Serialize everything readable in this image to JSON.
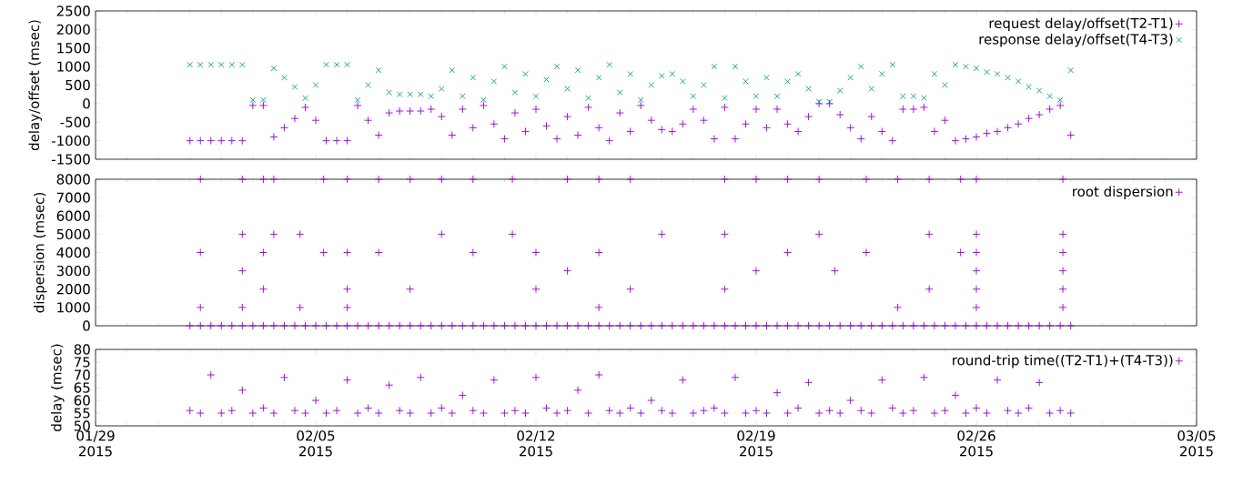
{
  "chart_data": [
    {
      "type": "scatter",
      "ylabel": "delay/offset (msec)",
      "legend": "top right",
      "tick_labels": "y",
      "xlim": [
        "2015-01-29",
        "2015-03-05"
      ],
      "xticks": [
        {
          "value": "2015-01-29",
          "label": null
        },
        {
          "value": "2015-02-05",
          "label": null
        },
        {
          "value": "2015-02-12",
          "label": null
        },
        {
          "value": "2015-02-19",
          "label": null
        },
        {
          "value": "2015-02-26",
          "label": null
        },
        {
          "value": "2015-03-05",
          "label": null
        }
      ],
      "ylim": [
        -1500,
        2500
      ],
      "yticks": [
        -1500,
        -1000,
        -500,
        0,
        500,
        1000,
        1500,
        2000,
        2500
      ],
      "x": [
        "2015-02-01T00:00",
        "2015-02-01T08:00",
        "2015-02-01T16:00",
        "2015-02-02T00:00",
        "2015-02-02T08:00",
        "2015-02-02T16:00",
        "2015-02-03T00:00",
        "2015-02-03T08:00",
        "2015-02-03T16:00",
        "2015-02-04T00:00",
        "2015-02-04T08:00",
        "2015-02-04T16:00",
        "2015-02-05T00:00",
        "2015-02-05T08:00",
        "2015-02-05T16:00",
        "2015-02-06T00:00",
        "2015-02-06T08:00",
        "2015-02-06T16:00",
        "2015-02-07T00:00",
        "2015-02-07T08:00",
        "2015-02-07T16:00",
        "2015-02-08T00:00",
        "2015-02-08T08:00",
        "2015-02-08T16:00",
        "2015-02-09T00:00",
        "2015-02-09T08:00",
        "2015-02-09T16:00",
        "2015-02-10T00:00",
        "2015-02-10T08:00",
        "2015-02-10T16:00",
        "2015-02-11T00:00",
        "2015-02-11T08:00",
        "2015-02-11T16:00",
        "2015-02-12T00:00",
        "2015-02-12T08:00",
        "2015-02-12T16:00",
        "2015-02-13T00:00",
        "2015-02-13T08:00",
        "2015-02-13T16:00",
        "2015-02-14T00:00",
        "2015-02-14T08:00",
        "2015-02-14T16:00",
        "2015-02-15T00:00",
        "2015-02-15T08:00",
        "2015-02-15T16:00",
        "2015-02-16T00:00",
        "2015-02-16T08:00",
        "2015-02-16T16:00",
        "2015-02-17T00:00",
        "2015-02-17T08:00",
        "2015-02-17T16:00",
        "2015-02-18T00:00",
        "2015-02-18T08:00",
        "2015-02-18T16:00",
        "2015-02-19T00:00",
        "2015-02-19T08:00",
        "2015-02-19T16:00",
        "2015-02-20T00:00",
        "2015-02-20T08:00",
        "2015-02-20T16:00",
        "2015-02-21T00:00",
        "2015-02-21T08:00",
        "2015-02-21T16:00",
        "2015-02-22T00:00",
        "2015-02-22T08:00",
        "2015-02-22T16:00",
        "2015-02-23T00:00",
        "2015-02-23T08:00",
        "2015-02-23T16:00",
        "2015-02-24T00:00",
        "2015-02-24T08:00",
        "2015-02-24T16:00",
        "2015-02-25T00:00",
        "2015-02-25T08:00",
        "2015-02-25T16:00",
        "2015-02-26T00:00",
        "2015-02-26T08:00",
        "2015-02-26T16:00",
        "2015-02-27T00:00",
        "2015-02-27T08:00",
        "2015-02-27T16:00",
        "2015-02-28T00:00",
        "2015-02-28T08:00",
        "2015-02-28T16:00",
        "2015-03-01T00:00"
      ],
      "series": [
        {
          "name": "request delay/offset(T2-T1)",
          "color": "#9400d3",
          "marker": "plus",
          "values": [
            -1000,
            -1000,
            -1000,
            -1000,
            -1000,
            -1000,
            -50,
            -50,
            -900,
            -650,
            -400,
            -100,
            -450,
            -1000,
            -1000,
            -1000,
            -50,
            -450,
            -850,
            -250,
            -200,
            -200,
            -200,
            -150,
            -350,
            -850,
            -150,
            -650,
            -50,
            -550,
            -950,
            -250,
            -750,
            -150,
            -600,
            -950,
            -350,
            -850,
            -100,
            -650,
            -1000,
            -250,
            -750,
            -50,
            -450,
            -700,
            -750,
            -550,
            -150,
            -450,
            -950,
            -100,
            -950,
            -550,
            -150,
            -650,
            -150,
            -550,
            -750,
            -350,
            0,
            0,
            -300,
            -650,
            -950,
            -350,
            -750,
            -1000,
            -150,
            -150,
            -100,
            -750,
            -450,
            -1000,
            -950,
            -900,
            -800,
            -750,
            -650,
            -550,
            -400,
            -300,
            -150,
            -50,
            -850
          ]
        },
        {
          "name": "response delay/offset(T4-T3)",
          "color": "#009e73",
          "marker": "cross",
          "values": [
            1050,
            1050,
            1050,
            1050,
            1050,
            1050,
            100,
            100,
            950,
            700,
            450,
            150,
            500,
            1050,
            1050,
            1050,
            100,
            500,
            900,
            300,
            250,
            250,
            250,
            200,
            400,
            900,
            200,
            700,
            100,
            600,
            1000,
            300,
            800,
            200,
            650,
            1000,
            400,
            900,
            150,
            700,
            1050,
            300,
            800,
            100,
            500,
            750,
            800,
            600,
            200,
            500,
            1000,
            150,
            1000,
            600,
            200,
            700,
            200,
            600,
            800,
            400,
            50,
            50,
            350,
            700,
            1000,
            400,
            800,
            1050,
            200,
            200,
            150,
            800,
            500,
            1050,
            1000,
            950,
            850,
            800,
            700,
            600,
            450,
            350,
            200,
            100,
            900
          ]
        }
      ]
    },
    {
      "type": "scatter",
      "ylabel": "dispersion (msec)",
      "legend": "top right",
      "tick_labels": "y",
      "xlim": [
        "2015-01-29",
        "2015-03-05"
      ],
      "xticks": [
        {
          "value": "2015-01-29",
          "label": null
        },
        {
          "value": "2015-02-05",
          "label": null
        },
        {
          "value": "2015-02-12",
          "label": null
        },
        {
          "value": "2015-02-19",
          "label": null
        },
        {
          "value": "2015-02-26",
          "label": null
        },
        {
          "value": "2015-03-05",
          "label": null
        }
      ],
      "ylim": [
        0,
        8000
      ],
      "yticks": [
        0,
        1000,
        2000,
        3000,
        4000,
        5000,
        6000,
        7000,
        8000
      ],
      "x": [
        "2015-02-01T00:00",
        "2015-02-01T08:00",
        "2015-02-01T16:00",
        "2015-02-02T00:00",
        "2015-02-02T08:00",
        "2015-02-02T16:00",
        "2015-02-03T00:00",
        "2015-02-03T08:00",
        "2015-02-03T16:00",
        "2015-02-04T00:00",
        "2015-02-04T08:00",
        "2015-02-04T16:00",
        "2015-02-05T00:00",
        "2015-02-05T08:00",
        "2015-02-05T16:00",
        "2015-02-06T00:00",
        "2015-02-06T08:00",
        "2015-02-06T16:00",
        "2015-02-07T00:00",
        "2015-02-07T08:00",
        "2015-02-07T16:00",
        "2015-02-08T00:00",
        "2015-02-08T08:00",
        "2015-02-08T16:00",
        "2015-02-09T00:00",
        "2015-02-09T08:00",
        "2015-02-09T16:00",
        "2015-02-10T00:00",
        "2015-02-10T08:00",
        "2015-02-10T16:00",
        "2015-02-11T00:00",
        "2015-02-11T08:00",
        "2015-02-11T16:00",
        "2015-02-12T00:00",
        "2015-02-12T08:00",
        "2015-02-12T16:00",
        "2015-02-13T00:00",
        "2015-02-13T08:00",
        "2015-02-13T16:00",
        "2015-02-14T00:00",
        "2015-02-14T08:00",
        "2015-02-14T16:00",
        "2015-02-15T00:00",
        "2015-02-15T08:00",
        "2015-02-15T16:00",
        "2015-02-16T00:00",
        "2015-02-16T08:00",
        "2015-02-16T16:00",
        "2015-02-17T00:00",
        "2015-02-17T08:00",
        "2015-02-17T16:00",
        "2015-02-18T00:00",
        "2015-02-18T08:00",
        "2015-02-18T16:00",
        "2015-02-19T00:00",
        "2015-02-19T08:00",
        "2015-02-19T16:00",
        "2015-02-20T00:00",
        "2015-02-20T08:00",
        "2015-02-20T16:00",
        "2015-02-21T00:00",
        "2015-02-21T08:00",
        "2015-02-21T16:00",
        "2015-02-22T00:00",
        "2015-02-22T08:00",
        "2015-02-22T16:00",
        "2015-02-23T00:00",
        "2015-02-23T08:00",
        "2015-02-23T16:00",
        "2015-02-24T00:00",
        "2015-02-24T08:00",
        "2015-02-24T16:00",
        "2015-02-25T00:00",
        "2015-02-25T08:00",
        "2015-02-25T16:00",
        "2015-02-26T00:00",
        "2015-02-26T08:00",
        "2015-02-26T16:00",
        "2015-02-27T00:00",
        "2015-02-27T08:00",
        "2015-02-27T16:00",
        "2015-02-28T00:00",
        "2015-02-28T08:00",
        "2015-02-28T16:00",
        "2015-03-01T00:00",
        "2015-02-01T08:00",
        "2015-02-01T08:00",
        "2015-02-01T08:00",
        "2015-02-02T16:00",
        "2015-02-02T16:00",
        "2015-02-02T16:00",
        "2015-02-02T16:00",
        "2015-02-03T08:00",
        "2015-02-03T08:00",
        "2015-02-03T08:00",
        "2015-02-03T16:00",
        "2015-02-03T16:00",
        "2015-02-04T12:00",
        "2015-02-04T12:00",
        "2015-02-05T06:00",
        "2015-02-05T06:00",
        "2015-02-06T00:00",
        "2015-02-06T00:00",
        "2015-02-06T00:00",
        "2015-02-06T00:00",
        "2015-02-07T00:00",
        "2015-02-07T00:00",
        "2015-02-08T00:00",
        "2015-02-08T00:00",
        "2015-02-09T00:00",
        "2015-02-09T00:00",
        "2015-02-10T00:00",
        "2015-02-10T00:00",
        "2015-02-11T06:00",
        "2015-02-11T06:00",
        "2015-02-12T00:00",
        "2015-02-12T00:00",
        "2015-02-13T00:00",
        "2015-02-13T00:00",
        "2015-02-14T00:00",
        "2015-02-14T00:00",
        "2015-02-14T00:00",
        "2015-02-15T00:00",
        "2015-02-15T00:00",
        "2015-02-16T00:00",
        "2015-02-18T00:00",
        "2015-02-18T00:00",
        "2015-02-18T00:00",
        "2015-02-19T00:00",
        "2015-02-19T00:00",
        "2015-02-20T00:00",
        "2015-02-20T00:00",
        "2015-02-21T00:00",
        "2015-02-21T00:00",
        "2015-02-21T12:00",
        "2015-02-22T12:00",
        "2015-02-22T12:00",
        "2015-02-23T12:00",
        "2015-02-23T12:00",
        "2015-02-24T12:00",
        "2015-02-24T12:00",
        "2015-02-24T12:00",
        "2015-02-25T12:00",
        "2015-02-25T12:00",
        "2015-02-26T00:00",
        "2015-02-26T00:00",
        "2015-02-26T00:00",
        "2015-02-26T00:00",
        "2015-02-26T00:00",
        "2015-02-26T00:00",
        "2015-02-28T18:00",
        "2015-02-28T18:00",
        "2015-02-28T18:00",
        "2015-02-28T18:00",
        "2015-02-28T18:00",
        "2015-02-28T18:00"
      ],
      "series": [
        {
          "name": "root dispersion",
          "color": "#9400d3",
          "marker": "plus",
          "values": [
            0,
            0,
            0,
            0,
            0,
            0,
            0,
            0,
            0,
            0,
            0,
            0,
            0,
            0,
            0,
            0,
            0,
            0,
            0,
            0,
            0,
            0,
            0,
            0,
            0,
            0,
            0,
            0,
            0,
            0,
            0,
            0,
            0,
            0,
            0,
            0,
            0,
            0,
            0,
            0,
            0,
            0,
            0,
            0,
            0,
            0,
            0,
            0,
            0,
            0,
            0,
            0,
            0,
            0,
            0,
            0,
            0,
            0,
            0,
            0,
            0,
            0,
            0,
            0,
            0,
            0,
            0,
            0,
            0,
            0,
            0,
            0,
            0,
            0,
            0,
            0,
            0,
            0,
            0,
            0,
            0,
            0,
            0,
            0,
            0,
            8000,
            4000,
            1000,
            8000,
            5000,
            3000,
            1000,
            8000,
            4000,
            2000,
            8000,
            5000,
            5000,
            1000,
            8000,
            4000,
            8000,
            4000,
            2000,
            1000,
            8000,
            4000,
            8000,
            2000,
            8000,
            5000,
            8000,
            4000,
            8000,
            5000,
            4000,
            2000,
            8000,
            3000,
            8000,
            4000,
            1000,
            8000,
            2000,
            5000,
            8000,
            5000,
            2000,
            8000,
            3000,
            8000,
            4000,
            8000,
            5000,
            3000,
            8000,
            4000,
            8000,
            1000,
            8000,
            5000,
            2000,
            8000,
            4000,
            8000,
            5000,
            4000,
            3000,
            2000,
            1000,
            8000,
            5000,
            4000,
            3000,
            2000,
            1000
          ]
        }
      ]
    },
    {
      "type": "scatter",
      "ylabel": "delay (msec)",
      "legend": "top right",
      "xlim": [
        "2015-01-29",
        "2015-03-05"
      ],
      "xticks": [
        {
          "value": "2015-01-29",
          "label": "01/29 2015"
        },
        {
          "value": "2015-02-05",
          "label": "02/05 2015"
        },
        {
          "value": "2015-02-12",
          "label": "02/12 2015"
        },
        {
          "value": "2015-02-19",
          "label": "02/19 2015"
        },
        {
          "value": "2015-02-26",
          "label": "02/26 2015"
        },
        {
          "value": "2015-03-05",
          "label": "03/05 2015"
        }
      ],
      "ylim": [
        50,
        80
      ],
      "yticks": [
        50,
        55,
        60,
        65,
        70,
        75,
        80
      ],
      "x": [
        "2015-02-01T00:00",
        "2015-02-01T08:00",
        "2015-02-01T16:00",
        "2015-02-02T00:00",
        "2015-02-02T08:00",
        "2015-02-02T16:00",
        "2015-02-03T00:00",
        "2015-02-03T08:00",
        "2015-02-03T16:00",
        "2015-02-04T00:00",
        "2015-02-04T08:00",
        "2015-02-04T16:00",
        "2015-02-05T00:00",
        "2015-02-05T08:00",
        "2015-02-05T16:00",
        "2015-02-06T00:00",
        "2015-02-06T08:00",
        "2015-02-06T16:00",
        "2015-02-07T00:00",
        "2015-02-07T08:00",
        "2015-02-07T16:00",
        "2015-02-08T00:00",
        "2015-02-08T08:00",
        "2015-02-08T16:00",
        "2015-02-09T00:00",
        "2015-02-09T08:00",
        "2015-02-09T16:00",
        "2015-02-10T00:00",
        "2015-02-10T08:00",
        "2015-02-10T16:00",
        "2015-02-11T00:00",
        "2015-02-11T08:00",
        "2015-02-11T16:00",
        "2015-02-12T00:00",
        "2015-02-12T08:00",
        "2015-02-12T16:00",
        "2015-02-13T00:00",
        "2015-02-13T08:00",
        "2015-02-13T16:00",
        "2015-02-14T00:00",
        "2015-02-14T08:00",
        "2015-02-14T16:00",
        "2015-02-15T00:00",
        "2015-02-15T08:00",
        "2015-02-15T16:00",
        "2015-02-16T00:00",
        "2015-02-16T08:00",
        "2015-02-16T16:00",
        "2015-02-17T00:00",
        "2015-02-17T08:00",
        "2015-02-17T16:00",
        "2015-02-18T00:00",
        "2015-02-18T08:00",
        "2015-02-18T16:00",
        "2015-02-19T00:00",
        "2015-02-19T08:00",
        "2015-02-19T16:00",
        "2015-02-20T00:00",
        "2015-02-20T08:00",
        "2015-02-20T16:00",
        "2015-02-21T00:00",
        "2015-02-21T08:00",
        "2015-02-21T16:00",
        "2015-02-22T00:00",
        "2015-02-22T08:00",
        "2015-02-22T16:00",
        "2015-02-23T00:00",
        "2015-02-23T08:00",
        "2015-02-23T16:00",
        "2015-02-24T00:00",
        "2015-02-24T08:00",
        "2015-02-24T16:00",
        "2015-02-25T00:00",
        "2015-02-25T08:00",
        "2015-02-25T16:00",
        "2015-02-26T00:00",
        "2015-02-26T08:00",
        "2015-02-26T16:00",
        "2015-02-27T00:00",
        "2015-02-27T08:00",
        "2015-02-27T16:00",
        "2015-02-28T00:00",
        "2015-02-28T08:00",
        "2015-02-28T16:00",
        "2015-03-01T00:00"
      ],
      "series": [
        {
          "name": "round-trip time((T2-T1)+(T4-T3))",
          "color": "#9400d3",
          "marker": "plus",
          "values": [
            56,
            55,
            70,
            55,
            56,
            64,
            55,
            57,
            55,
            69,
            56,
            55,
            60,
            55,
            56,
            68,
            55,
            57,
            55,
            66,
            56,
            55,
            69,
            55,
            57,
            55,
            62,
            56,
            55,
            68,
            55,
            56,
            55,
            69,
            57,
            55,
            56,
            64,
            55,
            70,
            56,
            55,
            57,
            55,
            60,
            56,
            55,
            68,
            55,
            56,
            57,
            55,
            69,
            55,
            56,
            55,
            63,
            55,
            57,
            67,
            55,
            56,
            55,
            60,
            56,
            55,
            68,
            57,
            55,
            56,
            69,
            55,
            56,
            62,
            55,
            57,
            55,
            68,
            56,
            55,
            57,
            67,
            55,
            56,
            55
          ]
        }
      ]
    }
  ]
}
